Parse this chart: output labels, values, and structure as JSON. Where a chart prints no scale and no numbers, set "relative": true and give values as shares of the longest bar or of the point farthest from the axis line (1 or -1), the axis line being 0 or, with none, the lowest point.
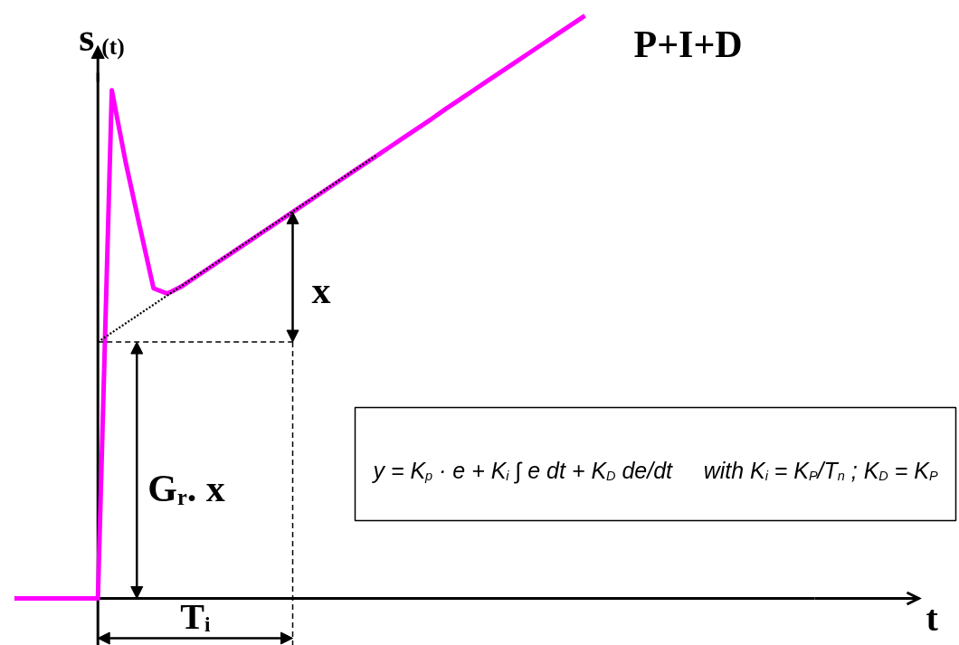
{
  "chart_data": {
    "type": "line",
    "relative": true,
    "ylabel": "s$_{(t)}$",
    "categories": [
      null,
      null,
      null,
      null,
      null,
      null,
      null,
      null,
      null,
      null,
      null,
      null,
      null,
      null,
      null,
      null,
      null,
      null,
      null,
      null,
      null,
      null,
      null,
      null,
      null,
      null,
      null,
      null,
      null,
      null,
      null,
      null,
      null,
      null,
      null,
      null,
      null,
      null,
      null,
      null,
      null,
      null
    ],
    "series": [
      {
        "name": "P+I+D",
        "color": "#ff00ff",
        "line_style": "solid",
        "values": [
          0,
          0,
          0,
          0,
          0,
          0,
          0,
          0.872,
          0.748,
          0.639,
          0.532,
          0.523,
          0.535,
          0.551,
          0.567,
          0.583,
          0.599,
          0.615,
          0.631,
          0.647,
          0.663,
          0.679,
          0.695,
          0.711,
          0.727,
          0.743,
          0.759,
          0.775,
          0.791,
          0.807,
          0.823,
          0.84,
          0.856,
          0.872,
          0.888,
          0.904,
          0.92,
          0.936,
          0.952,
          0.968,
          0.984,
          1.0
        ]
      },
      {
        "color": "#000000",
        "line_style": "dotted",
        "values": [
          null,
          null,
          null,
          null,
          null,
          null,
          0.44,
          0.456,
          0.472,
          0.488,
          0.504,
          0.52,
          0.536,
          0.552,
          0.568,
          0.584,
          0.6,
          0.616,
          0.632,
          0.648,
          0.664,
          0.68,
          0.696,
          0.712,
          0.728,
          0.744,
          0.76,
          null,
          null,
          null,
          null,
          null,
          null,
          null,
          null,
          null,
          null,
          null,
          null,
          null,
          null,
          null
        ]
      },
      {
        "color": "#000000",
        "line_style": "dashed",
        "values": [
          null,
          null,
          null,
          null,
          null,
          null,
          0.44,
          0.44,
          0.44,
          0.44,
          0.44,
          0.44,
          0.44,
          0.44,
          0.44,
          0.44,
          0.44,
          0.44,
          0.44,
          0.44,
          0.44,
          null,
          null,
          null,
          null,
          null,
          null,
          null,
          null,
          null,
          null,
          null,
          null,
          null,
          null,
          null,
          null,
          null,
          null,
          null,
          null,
          null
        ]
      }
    ],
    "annotations": [
      "x",
      "G$_{r}$. x",
      "T$_{i}$",
      "y = K$_{p}$ · e + K$_{i}$ ∫ e dt + K$_{D}$ de/dt     with K$_{i}$ = K$_{P}$/T$_{n}$ ; K$_{D}$ = K$_{P}$",
      "t"
    ]
  }
}
